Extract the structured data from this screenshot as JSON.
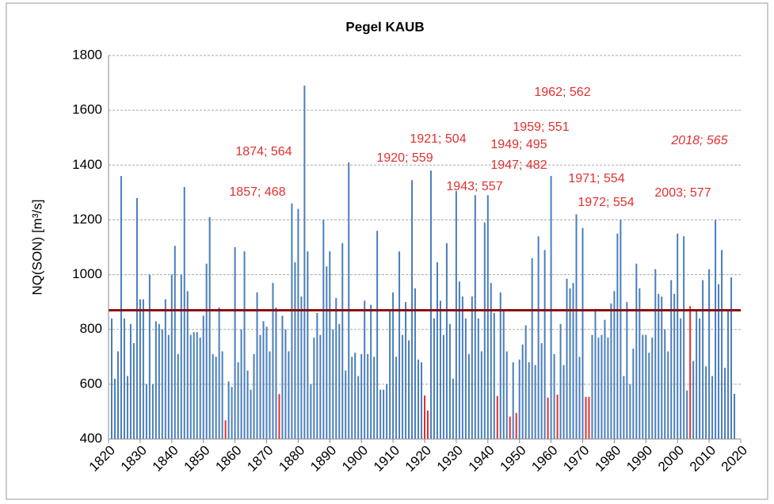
{
  "chart_data": {
    "type": "bar",
    "title": "Pegel KAUB",
    "y_label": "NQ(SON) [m³/s]",
    "x": [
      1821,
      1822,
      1823,
      1824,
      1825,
      1826,
      1827,
      1828,
      1829,
      1830,
      1831,
      1832,
      1833,
      1834,
      1835,
      1836,
      1837,
      1838,
      1839,
      1840,
      1841,
      1842,
      1843,
      1844,
      1845,
      1846,
      1847,
      1848,
      1849,
      1850,
      1851,
      1852,
      1853,
      1854,
      1855,
      1856,
      1857,
      1858,
      1859,
      1860,
      1861,
      1862,
      1863,
      1864,
      1865,
      1866,
      1867,
      1868,
      1869,
      1870,
      1871,
      1872,
      1873,
      1874,
      1875,
      1876,
      1877,
      1878,
      1879,
      1880,
      1881,
      1882,
      1883,
      1884,
      1885,
      1886,
      1887,
      1888,
      1889,
      1890,
      1891,
      1892,
      1893,
      1894,
      1895,
      1896,
      1897,
      1898,
      1899,
      1900,
      1901,
      1902,
      1903,
      1904,
      1905,
      1906,
      1907,
      1908,
      1909,
      1910,
      1911,
      1912,
      1913,
      1914,
      1915,
      1916,
      1917,
      1918,
      1919,
      1920,
      1921,
      1922,
      1923,
      1924,
      1925,
      1926,
      1927,
      1928,
      1929,
      1930,
      1931,
      1932,
      1933,
      1934,
      1935,
      1936,
      1937,
      1938,
      1939,
      1940,
      1941,
      1942,
      1943,
      1944,
      1945,
      1946,
      1947,
      1948,
      1949,
      1950,
      1951,
      1952,
      1953,
      1954,
      1955,
      1956,
      1957,
      1958,
      1959,
      1960,
      1961,
      1962,
      1963,
      1964,
      1965,
      1966,
      1967,
      1968,
      1969,
      1970,
      1971,
      1972,
      1973,
      1974,
      1975,
      1976,
      1977,
      1978,
      1979,
      1980,
      1981,
      1982,
      1983,
      1984,
      1985,
      1986,
      1987,
      1988,
      1989,
      1990,
      1991,
      1992,
      1993,
      1994,
      1995,
      1996,
      1997,
      1998,
      1999,
      2000,
      2001,
      2002,
      2003,
      2004,
      2005,
      2006,
      2007,
      2008,
      2009,
      2010,
      2011,
      2012,
      2013,
      2014,
      2015,
      2016,
      2017,
      2018
    ],
    "values": [
      840,
      620,
      720,
      1360,
      840,
      630,
      820,
      750,
      1280,
      910,
      910,
      600,
      1000,
      600,
      830,
      820,
      800,
      910,
      780,
      1000,
      1105,
      710,
      1000,
      1320,
      940,
      780,
      790,
      790,
      770,
      850,
      1040,
      1210,
      710,
      700,
      880,
      720,
      468,
      610,
      590,
      1100,
      680,
      800,
      1085,
      650,
      580,
      710,
      935,
      780,
      830,
      810,
      720,
      970,
      880,
      564,
      850,
      800,
      720,
      1260,
      1045,
      1240,
      920,
      1690,
      1085,
      600,
      770,
      860,
      780,
      1200,
      1030,
      1085,
      800,
      915,
      820,
      1115,
      650,
      1410,
      700,
      715,
      630,
      710,
      905,
      710,
      890,
      700,
      1160,
      580,
      580,
      600,
      870,
      935,
      700,
      1085,
      780,
      900,
      760,
      1345,
      950,
      690,
      680,
      559,
      504,
      1380,
      840,
      1045,
      905,
      780,
      1115,
      820,
      620,
      1305,
      975,
      920,
      840,
      710,
      920,
      1290,
      840,
      720,
      1190,
      1290,
      970,
      860,
      557,
      935,
      870,
      720,
      482,
      680,
      495,
      690,
      745,
      815,
      680,
      1060,
      670,
      1140,
      750,
      1090,
      551,
      1360,
      710,
      562,
      820,
      670,
      985,
      950,
      970,
      1220,
      700,
      1170,
      554,
      554,
      780,
      875,
      770,
      780,
      835,
      770,
      895,
      940,
      1150,
      1200,
      630,
      900,
      600,
      730,
      1040,
      950,
      780,
      780,
      715,
      770,
      1020,
      930,
      920,
      800,
      720,
      980,
      930,
      1150,
      840,
      1140,
      577,
      885,
      685,
      870,
      840,
      980,
      665,
      1020,
      630,
      1200,
      965,
      1090,
      660,
      870,
      990,
      565
    ],
    "colors": [
      "#4a7ebb",
      "#4a7ebb",
      "#4a7ebb",
      "#4a7ebb",
      "#4a7ebb",
      "#4a7ebb",
      "#4a7ebb",
      "#4a7ebb",
      "#4a7ebb",
      "#4a7ebb",
      "#4a7ebb",
      "#4a7ebb",
      "#4a7ebb",
      "#4a7ebb",
      "#4a7ebb",
      "#4a7ebb",
      "#4a7ebb",
      "#4a7ebb",
      "#4a7ebb",
      "#4a7ebb",
      "#4a7ebb",
      "#4a7ebb",
      "#4a7ebb",
      "#4a7ebb",
      "#4a7ebb",
      "#4a7ebb",
      "#4a7ebb",
      "#4a7ebb",
      "#4a7ebb",
      "#4a7ebb",
      "#4a7ebb",
      "#4a7ebb",
      "#4a7ebb",
      "#4a7ebb",
      "#4a7ebb",
      "#4a7ebb",
      "#e0302f",
      "#4a7ebb",
      "#4a7ebb",
      "#4a7ebb",
      "#4a7ebb",
      "#4a7ebb",
      "#4a7ebb",
      "#4a7ebb",
      "#4a7ebb",
      "#4a7ebb",
      "#4a7ebb",
      "#4a7ebb",
      "#4a7ebb",
      "#4a7ebb",
      "#4a7ebb",
      "#4a7ebb",
      "#4a7ebb",
      "#e0302f",
      "#4a7ebb",
      "#4a7ebb",
      "#4a7ebb",
      "#4a7ebb",
      "#4a7ebb",
      "#4a7ebb",
      "#4a7ebb",
      "#4a7ebb",
      "#4a7ebb",
      "#4a7ebb",
      "#4a7ebb",
      "#4a7ebb",
      "#4a7ebb",
      "#4a7ebb",
      "#4a7ebb",
      "#4a7ebb",
      "#4a7ebb",
      "#4a7ebb",
      "#4a7ebb",
      "#4a7ebb",
      "#4a7ebb",
      "#4a7ebb",
      "#4a7ebb",
      "#4a7ebb",
      "#4a7ebb",
      "#4a7ebb",
      "#4a7ebb",
      "#4a7ebb",
      "#4a7ebb",
      "#4a7ebb",
      "#4a7ebb",
      "#4a7ebb",
      "#4a7ebb",
      "#4a7ebb",
      "#4a7ebb",
      "#4a7ebb",
      "#4a7ebb",
      "#4a7ebb",
      "#4a7ebb",
      "#4a7ebb",
      "#4a7ebb",
      "#4a7ebb",
      "#4a7ebb",
      "#4a7ebb",
      "#4a7ebb",
      "#e0302f",
      "#e0302f",
      "#4a7ebb",
      "#4a7ebb",
      "#4a7ebb",
      "#4a7ebb",
      "#4a7ebb",
      "#4a7ebb",
      "#4a7ebb",
      "#4a7ebb",
      "#4a7ebb",
      "#4a7ebb",
      "#4a7ebb",
      "#4a7ebb",
      "#4a7ebb",
      "#4a7ebb",
      "#4a7ebb",
      "#4a7ebb",
      "#4a7ebb",
      "#4a7ebb",
      "#4a7ebb",
      "#4a7ebb",
      "#4a7ebb",
      "#e0302f",
      "#4a7ebb",
      "#4a7ebb",
      "#4a7ebb",
      "#e0302f",
      "#4a7ebb",
      "#e0302f",
      "#4a7ebb",
      "#4a7ebb",
      "#4a7ebb",
      "#4a7ebb",
      "#4a7ebb",
      "#4a7ebb",
      "#4a7ebb",
      "#4a7ebb",
      "#4a7ebb",
      "#e0302f",
      "#4a7ebb",
      "#4a7ebb",
      "#e0302f",
      "#4a7ebb",
      "#4a7ebb",
      "#4a7ebb",
      "#4a7ebb",
      "#4a7ebb",
      "#4a7ebb",
      "#4a7ebb",
      "#4a7ebb",
      "#e0302f",
      "#e0302f",
      "#4a7ebb",
      "#4a7ebb",
      "#4a7ebb",
      "#4a7ebb",
      "#4a7ebb",
      "#4a7ebb",
      "#4a7ebb",
      "#4a7ebb",
      "#4a7ebb",
      "#4a7ebb",
      "#4a7ebb",
      "#4a7ebb",
      "#4a7ebb",
      "#4a7ebb",
      "#4a7ebb",
      "#4a7ebb",
      "#4a7ebb",
      "#4a7ebb",
      "#4a7ebb",
      "#4a7ebb",
      "#4a7ebb",
      "#4a7ebb",
      "#4a7ebb",
      "#4a7ebb",
      "#4a7ebb",
      "#4a7ebb",
      "#4a7ebb",
      "#4a7ebb",
      "#4a7ebb",
      "#4a7ebb",
      "#4a7ebb",
      "#e0302f",
      "#4a7ebb",
      "#4a7ebb",
      "#4a7ebb",
      "#4a7ebb",
      "#4a7ebb",
      "#4a7ebb",
      "#4a7ebb",
      "#4a7ebb",
      "#4a7ebb",
      "#4a7ebb",
      "#4a7ebb",
      "#4a7ebb",
      "#4a7ebb",
      "#4a7ebb",
      "#e0302f"
    ],
    "xlim": [
      1820,
      2020
    ],
    "xticks": [
      1820,
      1830,
      1840,
      1850,
      1860,
      1870,
      1880,
      1890,
      1900,
      1910,
      1920,
      1930,
      1940,
      1950,
      1960,
      1970,
      1980,
      1990,
      2000,
      2010,
      2020
    ],
    "ylim": [
      400,
      1800
    ],
    "yticks": [
      400,
      600,
      800,
      1000,
      1200,
      1400,
      1600,
      1800
    ],
    "grid": true,
    "reference_line": {
      "value": 870,
      "color": "#8b1010"
    },
    "annotations": [
      {
        "text": "1857; 468"
      },
      {
        "text": "1874; 564"
      },
      {
        "text": "1920; 559"
      },
      {
        "text": "1921; 504"
      },
      {
        "text": "1943; 557"
      },
      {
        "text": "1947; 482"
      },
      {
        "text": "1949; 495"
      },
      {
        "text": "1959; 551"
      },
      {
        "text": "1962; 562"
      },
      {
        "text": "1971; 554"
      },
      {
        "text": "1972; 554"
      },
      {
        "text": "2003; 577"
      },
      {
        "text": "2018; 565",
        "italic": true
      }
    ],
    "annotation_color": "#e0302f"
  }
}
